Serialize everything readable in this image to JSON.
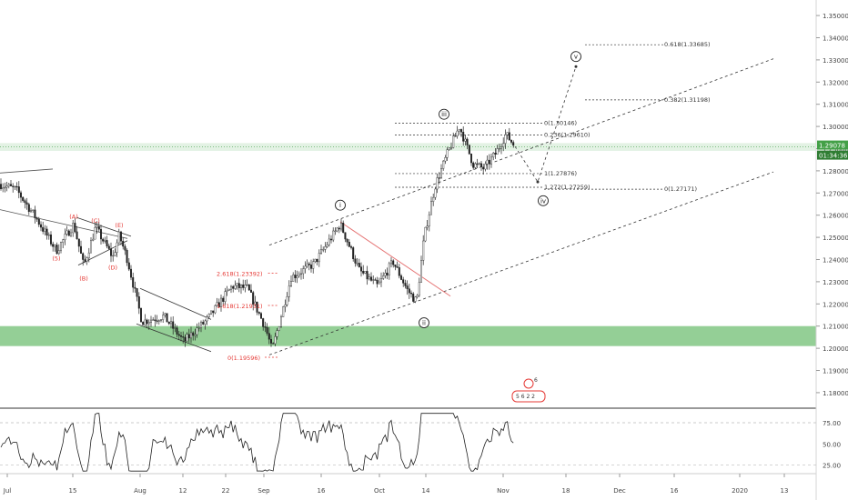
{
  "chart_data": {
    "type": "candlestick",
    "instrument_note": "",
    "price_axis": {
      "ticks": [
        "1.35000",
        "1.34000",
        "1.33000",
        "1.32000",
        "1.31000",
        "1.30000",
        "1.29000",
        "1.28000",
        "1.27000",
        "1.26000",
        "1.25000",
        "1.24000",
        "1.23000",
        "1.22000",
        "1.21000",
        "1.20000",
        "1.19000",
        "1.18000"
      ],
      "range": [
        1.173,
        1.357
      ]
    },
    "time_axis": {
      "ticks": [
        "Jul",
        "15",
        "Aug",
        "12",
        "22",
        "Sep",
        "16",
        "Oct",
        "14",
        "Nov",
        "18",
        "Dec",
        "16",
        "2020",
        "13"
      ]
    },
    "current_price": {
      "label": "1.29078",
      "value": 1.29078,
      "timer": "01:34:36"
    },
    "rsi_axis": {
      "ticks": [
        "75.00",
        "50.00",
        "25.00"
      ],
      "range": [
        15,
        90
      ]
    },
    "zones": [
      {
        "name": "support-zone",
        "from": 1.201,
        "to": 1.21,
        "color": "#81c784"
      },
      {
        "name": "current-band",
        "from": 1.289,
        "to": 1.2925,
        "color": "#c8e6c9"
      }
    ],
    "wave_labels": [
      {
        "text": "(A)",
        "x": 81,
        "price": 1.2585
      },
      {
        "text": "(C)",
        "x": 105,
        "price": 1.2565
      },
      {
        "text": "(E)",
        "x": 131,
        "price": 1.2545
      },
      {
        "text": "(5)",
        "x": 62,
        "price": 1.2395
      },
      {
        "text": "(B)",
        "x": 92,
        "price": 1.2305
      },
      {
        "text": "(D)",
        "x": 124,
        "price": 1.2355
      },
      {
        "text": "i",
        "x": 374,
        "price": 1.2645
      },
      {
        "text": "ii",
        "x": 466,
        "price": 1.2115
      },
      {
        "text": "iii",
        "x": 488,
        "price": 1.3055
      },
      {
        "text": "iv",
        "x": 597,
        "price": 1.2665
      },
      {
        "text": "v",
        "x": 633,
        "price": 1.3315
      }
    ],
    "fib_levels": [
      {
        "label": "2.618(1.23392)",
        "price": 1.23392,
        "color": "#e53935"
      },
      {
        "label": "1.618(1.21931)",
        "price": 1.21931,
        "color": "#e53935"
      },
      {
        "label": "0(1.19596)",
        "price": 1.19596,
        "color": "#e53935"
      },
      {
        "label": "0(1.30146)",
        "price": 1.30146,
        "color": "#333333"
      },
      {
        "label": "0.236(1.29610)",
        "price": 1.2961,
        "color": "#333333"
      },
      {
        "label": "1(1.27876)",
        "price": 1.27876,
        "color": "#333333"
      },
      {
        "label": "1.272(1.27259)",
        "price": 1.27259,
        "color": "#333333"
      },
      {
        "label": "0(1.27171)",
        "price": 1.27171,
        "color": "#333333"
      },
      {
        "label": "0.382(1.31198)",
        "price": 1.31198,
        "color": "#333333"
      },
      {
        "label": "0.618(1.33685)",
        "price": 1.33685,
        "color": "#333333"
      }
    ],
    "badge": {
      "top": "6",
      "bottom": "5 6 2 2"
    }
  }
}
